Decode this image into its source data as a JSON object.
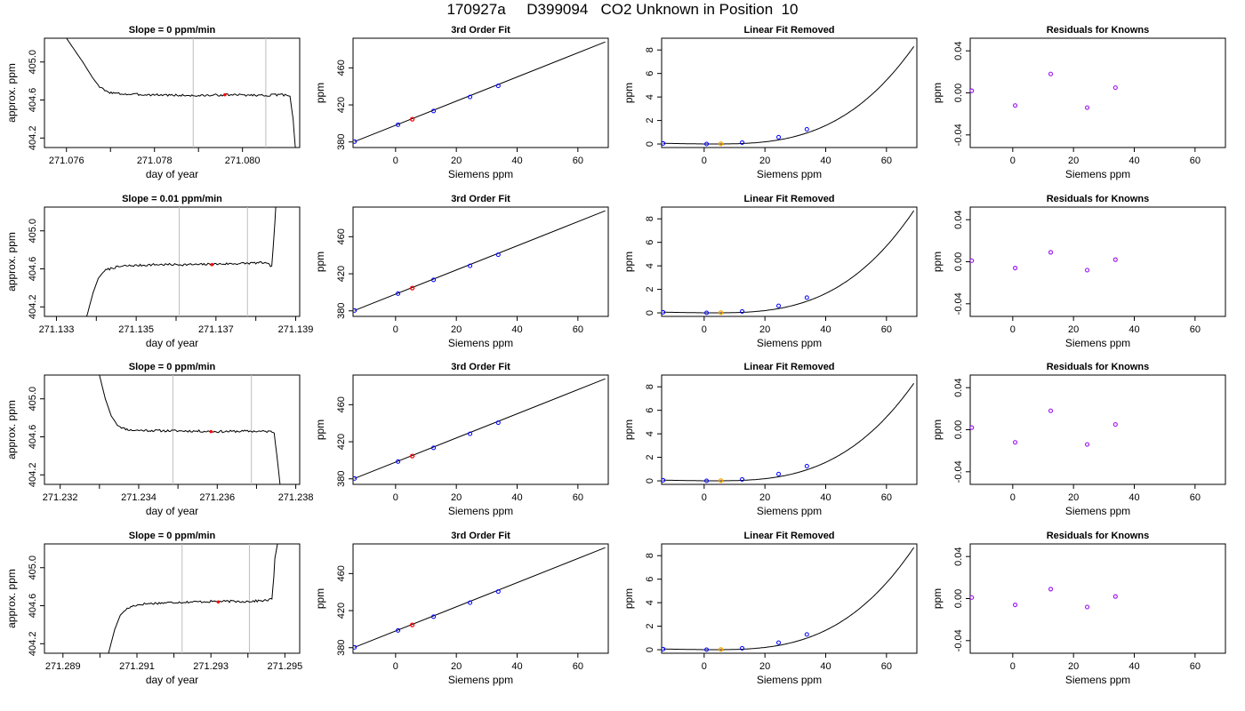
{
  "title": "170927a     D399094   CO2 Unknown in Position  10",
  "panel_titles": {
    "fit": "3rd Order Fit",
    "linear": "Linear Fit Removed",
    "residuals": "Residuals for Knowns"
  },
  "axis_labels": {
    "day_x": "day of year",
    "day_y": "approx. ppm",
    "siemens_x": "Siemens ppm",
    "ppm_y": "ppm"
  },
  "colors": {
    "line": "#000000",
    "cursor": "#bebebe",
    "standard_point": "#0000ff",
    "unknown_point_fit": "#ff0000",
    "unknown_point_linear": "#ffa500",
    "residual_point": "#a020f0"
  },
  "chart_data": [
    {
      "row": 1,
      "type": "line",
      "title": "Slope =  0  ppm/min",
      "xlabel": "day of year",
      "ylabel": "approx. ppm",
      "xlim": [
        271.0755,
        271.0813
      ],
      "ylim": [
        404.1,
        405.25
      ],
      "xticks": [
        "271.076",
        "271.078",
        "271.080"
      ],
      "xtick_values": [
        271.076,
        271.078,
        271.08
      ],
      "yticks": [
        "404.2",
        "404.6",
        "405.0"
      ],
      "ytick_values": [
        404.2,
        404.6,
        405.0
      ],
      "extra_xticks": [
        271.077,
        271.079
      ],
      "series": [
        {
          "x": [
            271.076,
            271.07637,
            271.0766,
            271.07675,
            271.0769,
            271.0771,
            271.0774,
            271.078,
            271.079,
            271.0796,
            271.0805,
            271.081,
            271.08108,
            271.08115,
            271.0812
          ],
          "y": [
            405.25,
            405.0,
            404.83,
            404.74,
            404.69,
            404.67,
            404.66,
            404.655,
            404.645,
            404.655,
            404.65,
            404.655,
            404.64,
            404.4,
            404.1
          ],
          "noise": 0.012,
          "seed": 3
        }
      ],
      "cursors_x": [
        271.07888,
        271.08053
      ],
      "marker": {
        "x": 271.0796,
        "y": 404.655
      }
    },
    {
      "row": 2,
      "type": "line",
      "title": "Slope =  0.01  ppm/min",
      "xlabel": "day of year",
      "ylabel": "approx. ppm",
      "xlim": [
        271.1327,
        271.1391
      ],
      "ylim": [
        404.1,
        405.25
      ],
      "xticks": [
        "271.133",
        "271.135",
        "271.137",
        "271.139"
      ],
      "xtick_values": [
        271.133,
        271.135,
        271.137,
        271.139
      ],
      "yticks": [
        "404.2",
        "404.6",
        "405.0"
      ],
      "ytick_values": [
        404.2,
        404.6,
        405.0
      ],
      "extra_xticks": [
        271.134,
        271.136,
        271.138
      ],
      "series": [
        {
          "x": [
            271.13376,
            271.13392,
            271.13405,
            271.1342,
            271.1344,
            271.1347,
            271.1355,
            271.1365,
            271.1375,
            271.1382,
            271.1384,
            271.13843,
            271.13848,
            271.1385
          ],
          "y": [
            404.1,
            404.35,
            404.5,
            404.58,
            404.61,
            404.63,
            404.645,
            404.645,
            404.655,
            404.665,
            404.63,
            404.8,
            405.1,
            405.25
          ],
          "noise": 0.012,
          "seed": 7
        }
      ],
      "cursors_x": [
        271.13608,
        271.13779
      ],
      "marker": {
        "x": 271.1369,
        "y": 404.645
      }
    },
    {
      "row": 3,
      "type": "line",
      "title": "Slope =  0  ppm/min",
      "xlabel": "day of year",
      "ylabel": "approx. ppm",
      "xlim": [
        271.2316,
        271.2381
      ],
      "ylim": [
        404.1,
        405.25
      ],
      "xticks": [
        "271.232",
        "271.234",
        "271.236",
        "271.238"
      ],
      "xtick_values": [
        271.232,
        271.234,
        271.236,
        271.238
      ],
      "yticks": [
        "404.2",
        "404.6",
        "405.0"
      ],
      "ytick_values": [
        404.2,
        404.6,
        405.0
      ],
      "extra_xticks": [
        271.233,
        271.235,
        271.237
      ],
      "series": [
        {
          "x": [
            271.233,
            271.23315,
            271.2333,
            271.23345,
            271.2336,
            271.2338,
            271.2345,
            271.2355,
            271.236,
            271.2368,
            271.2374,
            271.23745,
            271.23752,
            271.2376
          ],
          "y": [
            405.25,
            405.0,
            404.82,
            404.73,
            404.69,
            404.67,
            404.665,
            404.66,
            404.655,
            404.66,
            404.655,
            404.64,
            404.4,
            404.1
          ],
          "noise": 0.012,
          "seed": 11
        }
      ],
      "cursors_x": [
        271.23487,
        271.23687
      ],
      "marker": {
        "x": 271.23584,
        "y": 404.655
      }
    },
    {
      "row": 4,
      "type": "line",
      "title": "Slope =  0  ppm/min",
      "xlabel": "day of year",
      "ylabel": "approx. ppm",
      "xlim": [
        271.2885,
        271.2954
      ],
      "ylim": [
        404.1,
        405.25
      ],
      "xticks": [
        "271.289",
        "271.291",
        "271.293",
        "271.295"
      ],
      "xtick_values": [
        271.289,
        271.291,
        271.293,
        271.295
      ],
      "yticks": [
        "404.2",
        "404.6",
        "405.0"
      ],
      "ytick_values": [
        404.2,
        404.6,
        405.0
      ],
      "extra_xticks": [
        271.29,
        271.292,
        271.294
      ],
      "series": [
        {
          "x": [
            271.29023,
            271.2904,
            271.29055,
            271.2907,
            271.2909,
            271.2912,
            271.292,
            271.293,
            271.294,
            271.2945,
            271.29465,
            271.2947,
            271.29473,
            271.2948
          ],
          "y": [
            404.1,
            404.35,
            404.5,
            404.56,
            404.6,
            404.62,
            404.635,
            404.645,
            404.645,
            404.655,
            404.67,
            404.9,
            405.1,
            405.25
          ],
          "noise": 0.012,
          "seed": 17
        }
      ],
      "cursors_x": [
        271.29222,
        271.29404
      ],
      "marker": {
        "x": 271.2932,
        "y": 404.64
      }
    },
    {
      "row": 1,
      "type": "line",
      "title": "3rd Order Fit",
      "xlabel": "Siemens ppm",
      "ylabel": "ppm",
      "xlim": [
        -14,
        70
      ],
      "ylim": [
        374,
        492
      ],
      "xticks": [
        "0",
        "20",
        "40",
        "60"
      ],
      "yticks": [
        "380",
        "420",
        "460"
      ],
      "fit_line": {
        "x0": -13.5,
        "y0": 380.4,
        "x1": 69,
        "y1": 488
      },
      "standards": {
        "x": [
          -13.5,
          0.8,
          12.5,
          24.5,
          33.8
        ],
        "y": [
          380.4,
          398.6,
          413.4,
          428.6,
          440.6
        ]
      },
      "unknown": {
        "x": 5.5,
        "y": 404.6
      }
    },
    {
      "row": 2,
      "type": "line",
      "title": "3rd Order Fit",
      "xlabel": "Siemens ppm",
      "ylabel": "ppm",
      "xlim": [
        -14,
        70
      ],
      "ylim": [
        374,
        492
      ],
      "xticks": [
        "0",
        "20",
        "40",
        "60"
      ],
      "yticks": [
        "380",
        "420",
        "460"
      ],
      "fit_line": {
        "x0": -13.5,
        "y0": 380.4,
        "x1": 69,
        "y1": 488
      },
      "standards": {
        "x": [
          -13.5,
          0.8,
          12.5,
          24.5,
          33.8
        ],
        "y": [
          380.4,
          398.6,
          413.4,
          428.6,
          440.6
        ]
      },
      "unknown": {
        "x": 5.5,
        "y": 404.6
      }
    },
    {
      "row": 3,
      "type": "line",
      "title": "3rd Order Fit",
      "xlabel": "Siemens ppm",
      "ylabel": "ppm",
      "xlim": [
        -14,
        70
      ],
      "ylim": [
        374,
        492
      ],
      "xticks": [
        "0",
        "20",
        "40",
        "60"
      ],
      "yticks": [
        "380",
        "420",
        "460"
      ],
      "fit_line": {
        "x0": -13.5,
        "y0": 380.4,
        "x1": 69,
        "y1": 488
      },
      "standards": {
        "x": [
          -13.5,
          0.8,
          12.5,
          24.5,
          33.8
        ],
        "y": [
          380.4,
          398.6,
          413.4,
          428.6,
          440.6
        ]
      },
      "unknown": {
        "x": 5.5,
        "y": 404.6
      }
    },
    {
      "row": 4,
      "type": "line",
      "title": "3rd Order Fit",
      "xlabel": "Siemens ppm",
      "ylabel": "ppm",
      "xlim": [
        -14,
        70
      ],
      "ylim": [
        374,
        492
      ],
      "xticks": [
        "0",
        "20",
        "40",
        "60"
      ],
      "yticks": [
        "380",
        "420",
        "460"
      ],
      "fit_line": {
        "x0": -13.5,
        "y0": 380.4,
        "x1": 69,
        "y1": 488
      },
      "standards": {
        "x": [
          -13.5,
          0.8,
          12.5,
          24.5,
          33.8
        ],
        "y": [
          380.4,
          398.6,
          413.4,
          428.6,
          440.6
        ]
      },
      "unknown": {
        "x": 5.5,
        "y": 404.6
      }
    },
    {
      "row": 1,
      "type": "line",
      "title": "Linear Fit Removed",
      "xlabel": "Siemens ppm",
      "ylabel": "ppm",
      "xlim": [
        -14,
        70
      ],
      "ylim": [
        -0.3,
        9.0
      ],
      "xticks": [
        "0",
        "20",
        "40",
        "60"
      ],
      "yticks": [
        "0",
        "2",
        "4",
        "6",
        "8"
      ],
      "curve": {
        "x0": -13.5,
        "x1": 69,
        "min_x": 0.8,
        "min_y": 0.0,
        "end_y": 8.3
      },
      "standards": {
        "x": [
          -13.5,
          0.8,
          12.5,
          24.5,
          33.8
        ],
        "y": [
          0.05,
          0.0,
          0.12,
          0.58,
          1.25
        ]
      },
      "unknown": {
        "x": 5.5,
        "y": 0.02
      }
    },
    {
      "row": 2,
      "type": "line",
      "title": "Linear Fit Removed",
      "xlabel": "Siemens ppm",
      "ylabel": "ppm",
      "xlim": [
        -14,
        70
      ],
      "ylim": [
        -0.3,
        9.0
      ],
      "xticks": [
        "0",
        "20",
        "40",
        "60"
      ],
      "yticks": [
        "0",
        "2",
        "4",
        "6",
        "8"
      ],
      "curve": {
        "x0": -13.5,
        "x1": 69,
        "min_x": 0.8,
        "min_y": 0.0,
        "end_y": 8.7
      },
      "standards": {
        "x": [
          -13.5,
          0.8,
          12.5,
          24.5,
          33.8
        ],
        "y": [
          0.05,
          0.0,
          0.12,
          0.6,
          1.3
        ]
      },
      "unknown": {
        "x": 5.5,
        "y": 0.02
      }
    },
    {
      "row": 3,
      "type": "line",
      "title": "Linear Fit Removed",
      "xlabel": "Siemens ppm",
      "ylabel": "ppm",
      "xlim": [
        -14,
        70
      ],
      "ylim": [
        -0.3,
        9.0
      ],
      "xticks": [
        "0",
        "20",
        "40",
        "60"
      ],
      "yticks": [
        "0",
        "2",
        "4",
        "6",
        "8"
      ],
      "curve": {
        "x0": -13.5,
        "x1": 69,
        "min_x": 0.8,
        "min_y": 0.0,
        "end_y": 8.3
      },
      "standards": {
        "x": [
          -13.5,
          0.8,
          12.5,
          24.5,
          33.8
        ],
        "y": [
          0.05,
          0.0,
          0.12,
          0.58,
          1.25
        ]
      },
      "unknown": {
        "x": 5.5,
        "y": 0.02
      }
    },
    {
      "row": 4,
      "type": "line",
      "title": "Linear Fit Removed",
      "xlabel": "Siemens ppm",
      "ylabel": "ppm",
      "xlim": [
        -14,
        70
      ],
      "ylim": [
        -0.3,
        9.0
      ],
      "xticks": [
        "0",
        "20",
        "40",
        "60"
      ],
      "yticks": [
        "0",
        "2",
        "4",
        "6",
        "8"
      ],
      "curve": {
        "x0": -13.5,
        "x1": 69,
        "min_x": 0.8,
        "min_y": 0.0,
        "end_y": 8.7
      },
      "standards": {
        "x": [
          -13.5,
          0.8,
          12.5,
          24.5,
          33.8
        ],
        "y": [
          0.05,
          0.0,
          0.12,
          0.6,
          1.3
        ]
      },
      "unknown": {
        "x": 5.5,
        "y": 0.02
      }
    },
    {
      "row": 1,
      "type": "scatter",
      "title": "Residuals for Knowns",
      "xlabel": "Siemens ppm",
      "ylabel": "ppm",
      "xlim": [
        -14,
        70
      ],
      "ylim": [
        -0.052,
        0.052
      ],
      "xticks": [
        "0",
        "20",
        "40",
        "60"
      ],
      "yticks": [
        "-0.04",
        "0.00",
        "0.04"
      ],
      "points": {
        "x": [
          -13.5,
          0.8,
          12.5,
          24.5,
          33.8
        ],
        "y": [
          0.002,
          -0.012,
          0.018,
          -0.014,
          0.005
        ]
      }
    },
    {
      "row": 2,
      "type": "scatter",
      "title": "Residuals for Knowns",
      "xlabel": "Siemens ppm",
      "ylabel": "ppm",
      "xlim": [
        -14,
        70
      ],
      "ylim": [
        -0.052,
        0.052
      ],
      "xticks": [
        "0",
        "20",
        "40",
        "60"
      ],
      "yticks": [
        "-0.04",
        "0.00",
        "0.04"
      ],
      "points": {
        "x": [
          -13.5,
          0.8,
          12.5,
          24.5,
          33.8
        ],
        "y": [
          0.001,
          -0.006,
          0.009,
          -0.008,
          0.002
        ]
      }
    },
    {
      "row": 3,
      "type": "scatter",
      "title": "Residuals for Knowns",
      "xlabel": "Siemens ppm",
      "ylabel": "ppm",
      "xlim": [
        -14,
        70
      ],
      "ylim": [
        -0.052,
        0.052
      ],
      "xticks": [
        "0",
        "20",
        "40",
        "60"
      ],
      "yticks": [
        "-0.04",
        "0.00",
        "0.04"
      ],
      "points": {
        "x": [
          -13.5,
          0.8,
          12.5,
          24.5,
          33.8
        ],
        "y": [
          0.002,
          -0.012,
          0.018,
          -0.014,
          0.005
        ]
      }
    },
    {
      "row": 4,
      "type": "scatter",
      "title": "Residuals for Knowns",
      "xlabel": "Siemens ppm",
      "ylabel": "ppm",
      "xlim": [
        -14,
        70
      ],
      "ylim": [
        -0.052,
        0.052
      ],
      "xticks": [
        "0",
        "20",
        "40",
        "60"
      ],
      "yticks": [
        "-0.04",
        "0.00",
        "0.04"
      ],
      "points": {
        "x": [
          -13.5,
          0.8,
          12.5,
          24.5,
          33.8
        ],
        "y": [
          0.001,
          -0.006,
          0.009,
          -0.008,
          0.002
        ]
      }
    }
  ]
}
